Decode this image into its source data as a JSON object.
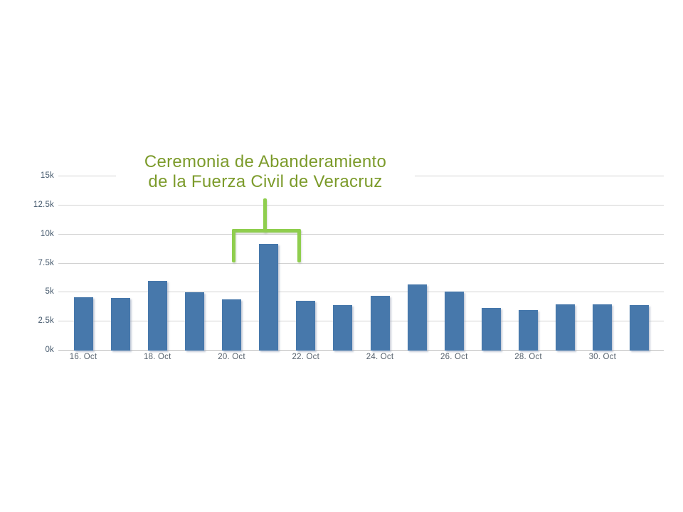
{
  "slide": {
    "annotation": {
      "line1": "Ceremonia de Abanderamiento",
      "line2": "de la Fuerza Civil de Veracruz"
    }
  },
  "chart_data": {
    "type": "bar",
    "title": "",
    "xlabel": "",
    "ylabel": "",
    "categories": [
      "16. Oct",
      "17. Oct",
      "18. Oct",
      "19. Oct",
      "20. Oct",
      "21. Oct",
      "22. Oct",
      "23. Oct",
      "24. Oct",
      "25. Oct",
      "26. Oct",
      "27. Oct",
      "28. Oct",
      "29. Oct",
      "30. Oct",
      "31. Oct"
    ],
    "values": [
      4600,
      4500,
      6000,
      5000,
      4400,
      9200,
      4300,
      3900,
      4700,
      5700,
      5100,
      3700,
      3500,
      4000,
      4000,
      3900
    ],
    "x_axis_labels_visible": [
      "16. Oct",
      "18. Oct",
      "20. Oct",
      "22. Oct",
      "24. Oct",
      "26. Oct",
      "28. Oct",
      "30. Oct"
    ],
    "y_axis_labels": [
      "0k",
      "2.5k",
      "5k",
      "7.5k",
      "10k",
      "12.5k",
      "15k"
    ],
    "ylim": [
      0,
      15000
    ],
    "grid": "horizontal-only",
    "legend": "none",
    "annotation": {
      "text": "Ceremonia de Abanderamiento de la Fuerza Civil de Veracruz",
      "bracket_span_categories": [
        "20. Oct",
        "22. Oct"
      ],
      "peak_category": "21. Oct",
      "peak_value": 9200
    },
    "colors": {
      "bar": "#4778ab",
      "gridline": "#d2d2d2",
      "axis_line": "#bfbfbf",
      "y_label": "#44586c",
      "x_label": "#57626d",
      "annotation_text": "#7c9b2b",
      "bracket": "#8fce4e",
      "background": "#ffffff"
    }
  }
}
